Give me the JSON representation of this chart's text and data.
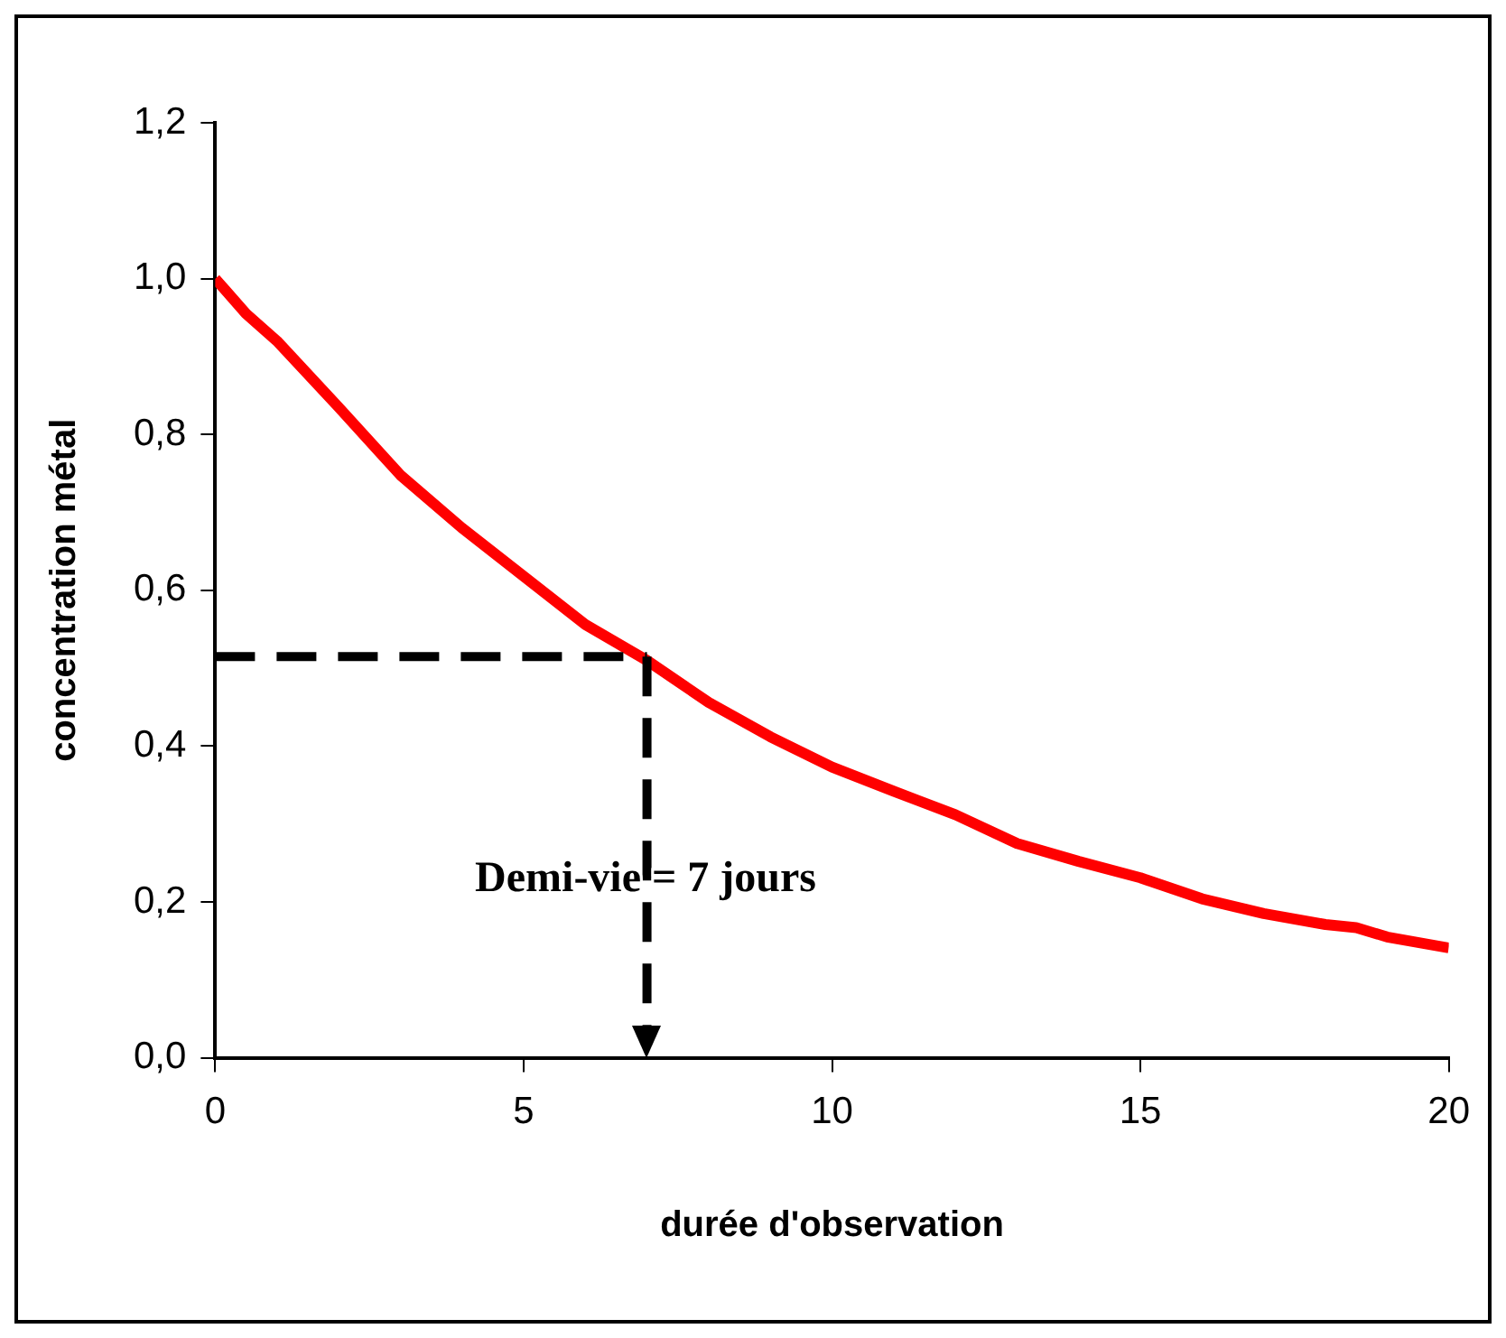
{
  "chart_data": {
    "type": "line",
    "xlabel": "durée d'observation",
    "ylabel": "concentration métal",
    "x": [
      0,
      0.5,
      1,
      2,
      3,
      4,
      5,
      6,
      7,
      8,
      9,
      10,
      11,
      12,
      13,
      14,
      15,
      16,
      17,
      18,
      18.5,
      19,
      20
    ],
    "series": [
      {
        "color": "#ff0000",
        "values": [
          1.0,
          0.955,
          0.92,
          0.835,
          0.748,
          0.68,
          0.618,
          0.556,
          0.51,
          0.456,
          0.412,
          0.373,
          0.342,
          0.312,
          0.275,
          0.252,
          0.231,
          0.204,
          0.185,
          0.171,
          0.167,
          0.155,
          0.141
        ]
      }
    ],
    "xlim": [
      0,
      20
    ],
    "xticks": [
      0,
      5,
      10,
      15,
      20
    ],
    "ylim": [
      0,
      1.2
    ],
    "yticks": [
      {
        "value": 0,
        "label": "0,0"
      },
      {
        "value": 0.2,
        "label": "0,2"
      },
      {
        "value": 0.4,
        "label": "0,4"
      },
      {
        "value": 0.6,
        "label": "0,6"
      },
      {
        "value": 0.8,
        "label": "0,8"
      },
      {
        "value": 1.0,
        "label": "1,0"
      },
      {
        "value": 1.2,
        "label": "1,2"
      }
    ],
    "ref_lines": [
      {
        "axis": "y",
        "value": 0.515,
        "color": "#000000",
        "line_style": "dashed"
      },
      {
        "axis": "x",
        "value": 7,
        "color": "#000000",
        "line_style": "dashed"
      }
    ],
    "annotations": [
      "Demi-vie = 7 jours"
    ],
    "grid": false,
    "legend": false,
    "marker": "none",
    "line_style": "solid"
  }
}
